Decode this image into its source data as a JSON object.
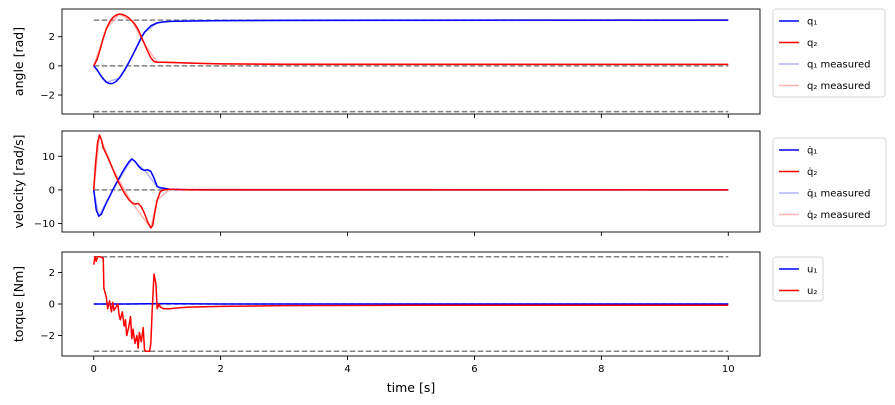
{
  "chart_data": {
    "type": "line",
    "xlabel": "time [s]",
    "xlim": [
      -0.5,
      10.5
    ],
    "xticks": [
      0,
      2,
      4,
      6,
      8,
      10
    ],
    "xtick_labels": [
      "0",
      "2",
      "4",
      "6",
      "8",
      "10"
    ],
    "panels": [
      {
        "ylabel": "angle [rad]",
        "ylim": [
          -3.3,
          3.9
        ],
        "yticks": [
          -2,
          0,
          2
        ],
        "ytick_labels": [
          "−2",
          "0",
          "2"
        ],
        "reference_lines": [
          3.14,
          0,
          -3.14
        ],
        "series": [
          {
            "name": "q1",
            "color": "#0000ff",
            "x": [
              0,
              0.05,
              0.1,
              0.15,
              0.2,
              0.25,
              0.3,
              0.35,
              0.4,
              0.45,
              0.5,
              0.55,
              0.6,
              0.65,
              0.7,
              0.75,
              0.8,
              0.9,
              1.0,
              1.1,
              1.2,
              1.5,
              2,
              3,
              5,
              10
            ],
            "y": [
              0,
              -0.25,
              -0.6,
              -0.9,
              -1.12,
              -1.22,
              -1.2,
              -1.08,
              -0.85,
              -0.55,
              -0.2,
              0.2,
              0.62,
              1.05,
              1.5,
              1.95,
              2.3,
              2.75,
              2.95,
              3.02,
              3.05,
              3.08,
              3.1,
              3.12,
              3.13,
              3.14
            ]
          },
          {
            "name": "q2",
            "color": "#ff0000",
            "x": [
              0,
              0.05,
              0.1,
              0.15,
              0.2,
              0.25,
              0.3,
              0.35,
              0.4,
              0.45,
              0.5,
              0.55,
              0.6,
              0.65,
              0.7,
              0.75,
              0.8,
              0.85,
              0.9,
              0.95,
              1.0,
              1.1,
              1.3,
              1.6,
              2,
              3,
              5,
              10
            ],
            "y": [
              0,
              0.4,
              1.1,
              1.9,
              2.55,
              3.0,
              3.3,
              3.48,
              3.55,
              3.53,
              3.45,
              3.3,
              3.1,
              2.85,
              2.5,
              2.0,
              1.5,
              1.0,
              0.55,
              0.3,
              0.25,
              0.25,
              0.22,
              0.18,
              0.14,
              0.1,
              0.1,
              0.1
            ]
          },
          {
            "name": "q1 measured",
            "color": "#b3b3ff",
            "x": [
              0,
              0.2,
              0.4,
              0.6,
              0.8,
              1.0,
              1.2,
              2,
              10
            ],
            "y": [
              0,
              -1.12,
              -0.85,
              0.62,
              2.3,
              2.95,
              3.05,
              3.1,
              3.14
            ]
          },
          {
            "name": "q2 measured",
            "color": "#ffb3b3",
            "x": [
              0,
              0.2,
              0.4,
              0.6,
              0.8,
              1.0,
              1.3,
              2,
              10
            ],
            "y": [
              0,
              2.55,
              3.55,
              3.1,
              1.5,
              0.25,
              0.22,
              0.14,
              0.1
            ]
          }
        ],
        "legend": [
          {
            "label": "q₁",
            "color": "#0000ff"
          },
          {
            "label": "q₂",
            "color": "#ff0000"
          },
          {
            "label": "q₁ measured",
            "color": "#b3b3ff"
          },
          {
            "label": "q₂ measured",
            "color": "#ffb3b3"
          }
        ]
      },
      {
        "ylabel": "velocity [rad/s]",
        "ylim": [
          -12.5,
          17.5
        ],
        "yticks": [
          -10,
          0,
          10
        ],
        "ytick_labels": [
          "−10",
          "0",
          "10"
        ],
        "reference_lines": [
          0
        ],
        "series": [
          {
            "name": "q̇1",
            "color": "#0000ff",
            "x": [
              0,
              0.04,
              0.08,
              0.12,
              0.16,
              0.2,
              0.25,
              0.3,
              0.35,
              0.4,
              0.45,
              0.5,
              0.55,
              0.6,
              0.65,
              0.7,
              0.75,
              0.8,
              0.85,
              0.9,
              0.95,
              1.0,
              1.05,
              1.1,
              1.2,
              1.5,
              2,
              10
            ],
            "y": [
              0,
              -6,
              -7.8,
              -7.2,
              -5.5,
              -3.8,
              -2,
              0,
              1.8,
              3.5,
              5.2,
              6.8,
              8.2,
              9.2,
              8.5,
              7.2,
              6.2,
              5.8,
              6.0,
              5.5,
              3.5,
              1.0,
              0.6,
              0.5,
              0.2,
              0.05,
              0,
              0
            ]
          },
          {
            "name": "q̇2",
            "color": "#ff0000",
            "x": [
              0,
              0.03,
              0.06,
              0.09,
              0.12,
              0.15,
              0.2,
              0.25,
              0.3,
              0.35,
              0.4,
              0.45,
              0.5,
              0.55,
              0.6,
              0.65,
              0.7,
              0.75,
              0.8,
              0.85,
              0.9,
              0.93,
              0.96,
              1.0,
              1.05,
              1.1,
              1.2,
              1.5,
              2,
              10
            ],
            "y": [
              0,
              8,
              14,
              16.3,
              15,
              12.5,
              10.5,
              8.5,
              6.2,
              4,
              2,
              0.2,
              -1.5,
              -2.8,
              -3.8,
              -4.2,
              -4.0,
              -5,
              -7,
              -9.5,
              -11.3,
              -10.5,
              -7,
              -3,
              -0.5,
              0,
              0.2,
              0,
              0,
              0
            ]
          },
          {
            "name": "q̇1 measured",
            "color": "#b3b3ff",
            "x": [
              0,
              0.08,
              0.3,
              0.6,
              0.8,
              1.0,
              1.2,
              10
            ],
            "y": [
              0,
              -7.8,
              0,
              9.2,
              5.8,
              1.0,
              0.2,
              0
            ]
          },
          {
            "name": "q̇2 measured",
            "color": "#ffb3b3",
            "x": [
              0,
              0.09,
              0.3,
              0.6,
              0.9,
              1.0,
              1.2,
              10
            ],
            "y": [
              0,
              16.3,
              6.2,
              -3.8,
              -11.3,
              -3,
              0.2,
              0
            ]
          }
        ],
        "legend": [
          {
            "label": "q̇₁",
            "color": "#0000ff"
          },
          {
            "label": "q̇₂",
            "color": "#ff0000"
          },
          {
            "label": "q̇₁ measured",
            "color": "#b3b3ff"
          },
          {
            "label": "q̇₂ measured",
            "color": "#ffb3b3"
          }
        ]
      },
      {
        "ylabel": "torque [Nm]",
        "ylim": [
          -3.3,
          3.3
        ],
        "yticks": [
          -2,
          0,
          2
        ],
        "ytick_labels": [
          "−2",
          "0",
          "2"
        ],
        "reference_lines": [
          3,
          0,
          -3
        ],
        "series": [
          {
            "name": "u1",
            "color": "#0000ff",
            "x": [
              0,
              0.5,
              1,
              2,
              5,
              10
            ],
            "y": [
              0,
              0,
              0.02,
              0,
              0,
              0
            ]
          },
          {
            "name": "u2",
            "color": "#ff0000",
            "x": [
              0,
              0.02,
              0.04,
              0.06,
              0.1,
              0.15,
              0.16,
              0.2,
              0.22,
              0.25,
              0.28,
              0.3,
              0.32,
              0.35,
              0.38,
              0.4,
              0.42,
              0.45,
              0.48,
              0.5,
              0.52,
              0.55,
              0.58,
              0.6,
              0.62,
              0.65,
              0.68,
              0.7,
              0.72,
              0.75,
              0.78,
              0.8,
              0.82,
              0.85,
              0.88,
              0.9,
              0.92,
              0.95,
              0.98,
              1.0,
              1.03,
              1.05,
              1.08,
              1.1,
              1.15,
              1.2,
              1.3,
              1.5,
              2,
              3,
              5,
              10
            ],
            "y": [
              2.5,
              3.0,
              2.7,
              3.0,
              3.0,
              2.9,
              1.0,
              0.4,
              -0.3,
              0.2,
              -0.5,
              0.1,
              -0.4,
              -0.2,
              0.0,
              -0.7,
              -1.0,
              -0.5,
              -1.4,
              -1.0,
              -2.0,
              -1.5,
              -0.8,
              -2.2,
              -1.6,
              -2.5,
              -2.0,
              -2.8,
              -1.8,
              -2.4,
              -1.5,
              -2.9,
              -3.0,
              -3.0,
              -3.0,
              -2.5,
              -0.5,
              1.9,
              1.3,
              -0.3,
              0.0,
              -0.2,
              -0.25,
              -0.3,
              -0.3,
              -0.3,
              -0.25,
              -0.2,
              -0.15,
              -0.1,
              -0.08,
              -0.08
            ]
          }
        ],
        "legend": [
          {
            "label": "u₁",
            "color": "#0000ff"
          },
          {
            "label": "u₂",
            "color": "#ff0000"
          }
        ]
      }
    ]
  }
}
